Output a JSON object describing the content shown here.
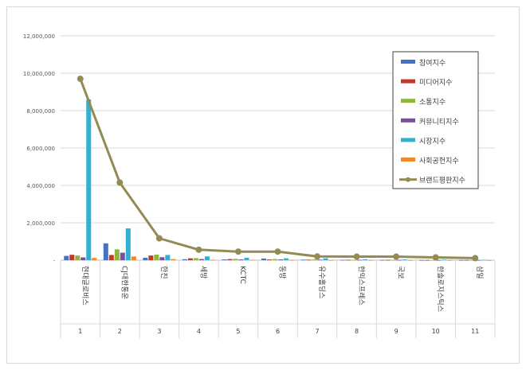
{
  "chart_data": {
    "type": "bar",
    "categories": [
      "현대글로비스",
      "CJ대한통운",
      "한진",
      "세방",
      "KCTC",
      "동방",
      "유수홀딩스",
      "한익스프레스",
      "국보",
      "한솔로지스틱스",
      "삼일"
    ],
    "index_labels": [
      "1",
      "2",
      "3",
      "4",
      "5",
      "6",
      "7",
      "8",
      "9",
      "10",
      "11"
    ],
    "ylim": [
      0,
      12000000
    ],
    "yticks": [
      0,
      2000000,
      4000000,
      6000000,
      8000000,
      10000000,
      12000000
    ],
    "ytick_labels": [
      "-",
      "2,000,000",
      "4,000,000",
      "6,000,000",
      "8,000,000",
      "10,000,000",
      "12,000,000"
    ],
    "grid": true,
    "legend_position": "top-right",
    "series": [
      {
        "name": "참여지수",
        "color": "#4472c4",
        "values": [
          230000,
          900000,
          130000,
          50000,
          40000,
          90000,
          30000,
          20000,
          15000,
          10000,
          10000
        ]
      },
      {
        "name": "미디어지수",
        "color": "#c0392b",
        "values": [
          290000,
          280000,
          250000,
          100000,
          60000,
          40000,
          30000,
          20000,
          15000,
          10000,
          10000
        ]
      },
      {
        "name": "소통지수",
        "color": "#8db63c",
        "values": [
          250000,
          580000,
          300000,
          110000,
          70000,
          60000,
          40000,
          20000,
          15000,
          10000,
          10000
        ]
      },
      {
        "name": "커뮤니티지수",
        "color": "#7a4fa0",
        "values": [
          150000,
          400000,
          160000,
          60000,
          40000,
          40000,
          30000,
          20000,
          15000,
          10000,
          10000
        ]
      },
      {
        "name": "시장지수",
        "color": "#31b0d0",
        "values": [
          8600000,
          1700000,
          280000,
          200000,
          130000,
          100000,
          100000,
          50000,
          40000,
          30000,
          20000
        ]
      },
      {
        "name": "사회공헌지수",
        "color": "#f0882b",
        "values": [
          120000,
          200000,
          60000,
          20000,
          15000,
          15000,
          10000,
          10000,
          5000,
          5000,
          5000
        ]
      }
    ],
    "line_series": {
      "name": "브랜드평판지수",
      "color": "#948a54",
      "values": [
        9700000,
        4150000,
        1170000,
        560000,
        460000,
        460000,
        200000,
        190000,
        190000,
        150000,
        110000
      ]
    }
  }
}
